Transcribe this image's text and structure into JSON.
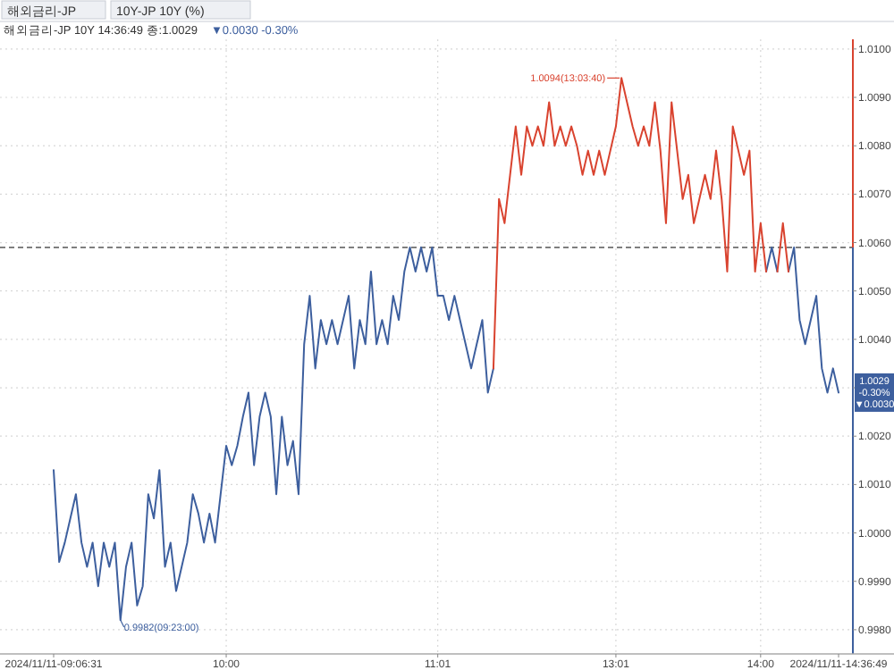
{
  "chart_data": {
    "type": "line",
    "title": "해외금리-JP",
    "subtitle": "10Y-JP 10Y (%)",
    "annotations": [
      "해외금리-JP 10Y 14:36:49 종:1.0029",
      "▼0.0030 -0.30%",
      "0.9982(09:23:00)",
      "1.0094(13:03:40)",
      "1.0029 -0.30% ▼0.0030"
    ],
    "categories": [
      "2024/11/11-09:06:31",
      null,
      null,
      null,
      null,
      null,
      null,
      null,
      null,
      null,
      null,
      null,
      null,
      null,
      null,
      null,
      null,
      null,
      null,
      null,
      null,
      null,
      null,
      null,
      null,
      null,
      null,
      null,
      null,
      null,
      null,
      "10:00",
      null,
      null,
      null,
      null,
      null,
      null,
      null,
      null,
      null,
      null,
      null,
      null,
      null,
      null,
      null,
      null,
      null,
      null,
      null,
      null,
      null,
      null,
      null,
      null,
      null,
      null,
      null,
      null,
      null,
      null,
      null,
      null,
      null,
      null,
      null,
      null,
      null,
      "11:01",
      null,
      null,
      null,
      null,
      null,
      null,
      null,
      null,
      null,
      null,
      null,
      null,
      null,
      null,
      null,
      null,
      null,
      null,
      null,
      null,
      null,
      null,
      null,
      null,
      null,
      null,
      null,
      null,
      null,
      null,
      null,
      "13:01",
      null,
      null,
      null,
      null,
      null,
      null,
      null,
      null,
      null,
      null,
      null,
      null,
      null,
      null,
      null,
      null,
      null,
      null,
      null,
      null,
      null,
      null,
      null,
      null,
      null,
      "14:00",
      null,
      null,
      null,
      null,
      null,
      null,
      null,
      null,
      null,
      null,
      null,
      null,
      null,
      "2024/11/11-14:36:49"
    ],
    "series": [
      {
        "color": "#3d5f9e",
        "values": [
          1.0013,
          0.9994,
          0.9998,
          1.0003,
          1.0008,
          0.9998,
          0.9993,
          0.9998,
          0.9989,
          0.9998,
          0.9993,
          0.9998,
          0.9982,
          0.9993,
          0.9998,
          0.9985,
          0.9989,
          1.0008,
          1.0003,
          1.0013,
          0.9993,
          0.9998,
          0.9988,
          0.9993,
          0.9998,
          1.0008,
          1.0004,
          0.9998,
          1.0004,
          0.9998,
          1.0008,
          1.0018,
          1.0014,
          1.0018,
          1.0024,
          1.0029,
          1.0014,
          1.0024,
          1.0029,
          1.0024,
          1.0008,
          1.0024,
          1.0014,
          1.0019,
          1.0008,
          1.0039,
          1.0049,
          1.0034,
          1.0044,
          1.0039,
          1.0044,
          1.0039,
          1.0044,
          1.0049,
          1.0034,
          1.0044,
          1.0039,
          1.0054,
          1.0039,
          1.0044,
          1.0039,
          1.0049,
          1.0044,
          1.0054,
          1.0059,
          1.0054,
          1.0059,
          1.0054,
          1.0059,
          1.0049,
          1.0049,
          1.0044,
          1.0049,
          1.0044,
          1.0039,
          1.0034,
          1.0039,
          1.0044,
          1.0029,
          1.0034,
          null,
          null,
          null,
          null,
          null,
          null,
          null,
          null,
          null,
          null,
          null,
          null,
          null,
          null,
          null,
          null,
          null,
          null,
          null,
          null,
          null,
          null,
          null,
          null,
          null,
          null,
          null,
          null,
          null,
          null,
          null,
          null,
          null,
          null,
          null,
          null,
          null,
          null,
          null,
          null,
          null,
          null,
          null,
          null,
          null,
          null,
          null,
          null,
          1.0054,
          1.0059,
          1.0054,
          null,
          1.0054,
          1.0059,
          1.0044,
          1.0039,
          1.0044,
          1.0049,
          1.0034,
          1.0029,
          1.0034,
          1.0029
        ]
      },
      {
        "color": "#d9432f",
        "values": [
          null,
          null,
          null,
          null,
          null,
          null,
          null,
          null,
          null,
          null,
          null,
          null,
          null,
          null,
          null,
          null,
          null,
          null,
          null,
          null,
          null,
          null,
          null,
          null,
          null,
          null,
          null,
          null,
          null,
          null,
          null,
          null,
          null,
          null,
          null,
          null,
          null,
          null,
          null,
          null,
          null,
          null,
          null,
          null,
          null,
          null,
          null,
          null,
          null,
          null,
          null,
          null,
          null,
          null,
          null,
          null,
          null,
          null,
          null,
          null,
          null,
          null,
          null,
          null,
          null,
          null,
          null,
          null,
          null,
          null,
          null,
          null,
          null,
          null,
          null,
          null,
          null,
          null,
          null,
          1.0034,
          1.0069,
          1.0064,
          1.0074,
          1.0084,
          1.0074,
          1.0084,
          1.008,
          1.0084,
          1.008,
          1.0089,
          1.008,
          1.0084,
          1.008,
          1.0084,
          1.008,
          1.0074,
          1.0079,
          1.0074,
          1.0079,
          1.0074,
          1.0079,
          1.0084,
          1.0094,
          1.0089,
          1.0084,
          1.008,
          1.0084,
          1.008,
          1.0089,
          1.0079,
          1.0064,
          1.0089,
          1.0079,
          1.0069,
          1.0074,
          1.0064,
          1.0069,
          1.0074,
          1.0069,
          1.0079,
          1.0069,
          1.0054,
          1.0084,
          1.0079,
          1.0074,
          1.0079,
          1.0054,
          1.0064,
          1.0054,
          null,
          1.0054,
          1.0064,
          1.0054,
          null,
          null,
          null,
          null,
          null,
          null,
          null,
          null,
          null
        ]
      }
    ],
    "ylim": [
      0.9975,
      1.0102
    ],
    "yticks": [
      {
        "value": 0.998,
        "label": "0.9980"
      },
      {
        "value": 0.999,
        "label": "0.9990"
      },
      {
        "value": 1.0,
        "label": "1.0000"
      },
      {
        "value": 1.001,
        "label": "1.0010"
      },
      {
        "value": 1.002,
        "label": "1.0020"
      },
      {
        "value": 1.003,
        "label": null
      },
      {
        "value": 1.004,
        "label": "1.0040"
      },
      {
        "value": 1.005,
        "label": "1.0050"
      },
      {
        "value": 1.006,
        "label": "1.0060"
      },
      {
        "value": 1.007,
        "label": "1.0070"
      },
      {
        "value": 1.008,
        "label": "1.0080"
      },
      {
        "value": 1.009,
        "label": "1.0090"
      },
      {
        "value": 1.01,
        "label": "1.0100"
      }
    ],
    "grid": true,
    "ref_lines": [
      {
        "axis": "y",
        "value": 1.0059,
        "color": "#555555",
        "line_style": "dashed"
      }
    ]
  }
}
